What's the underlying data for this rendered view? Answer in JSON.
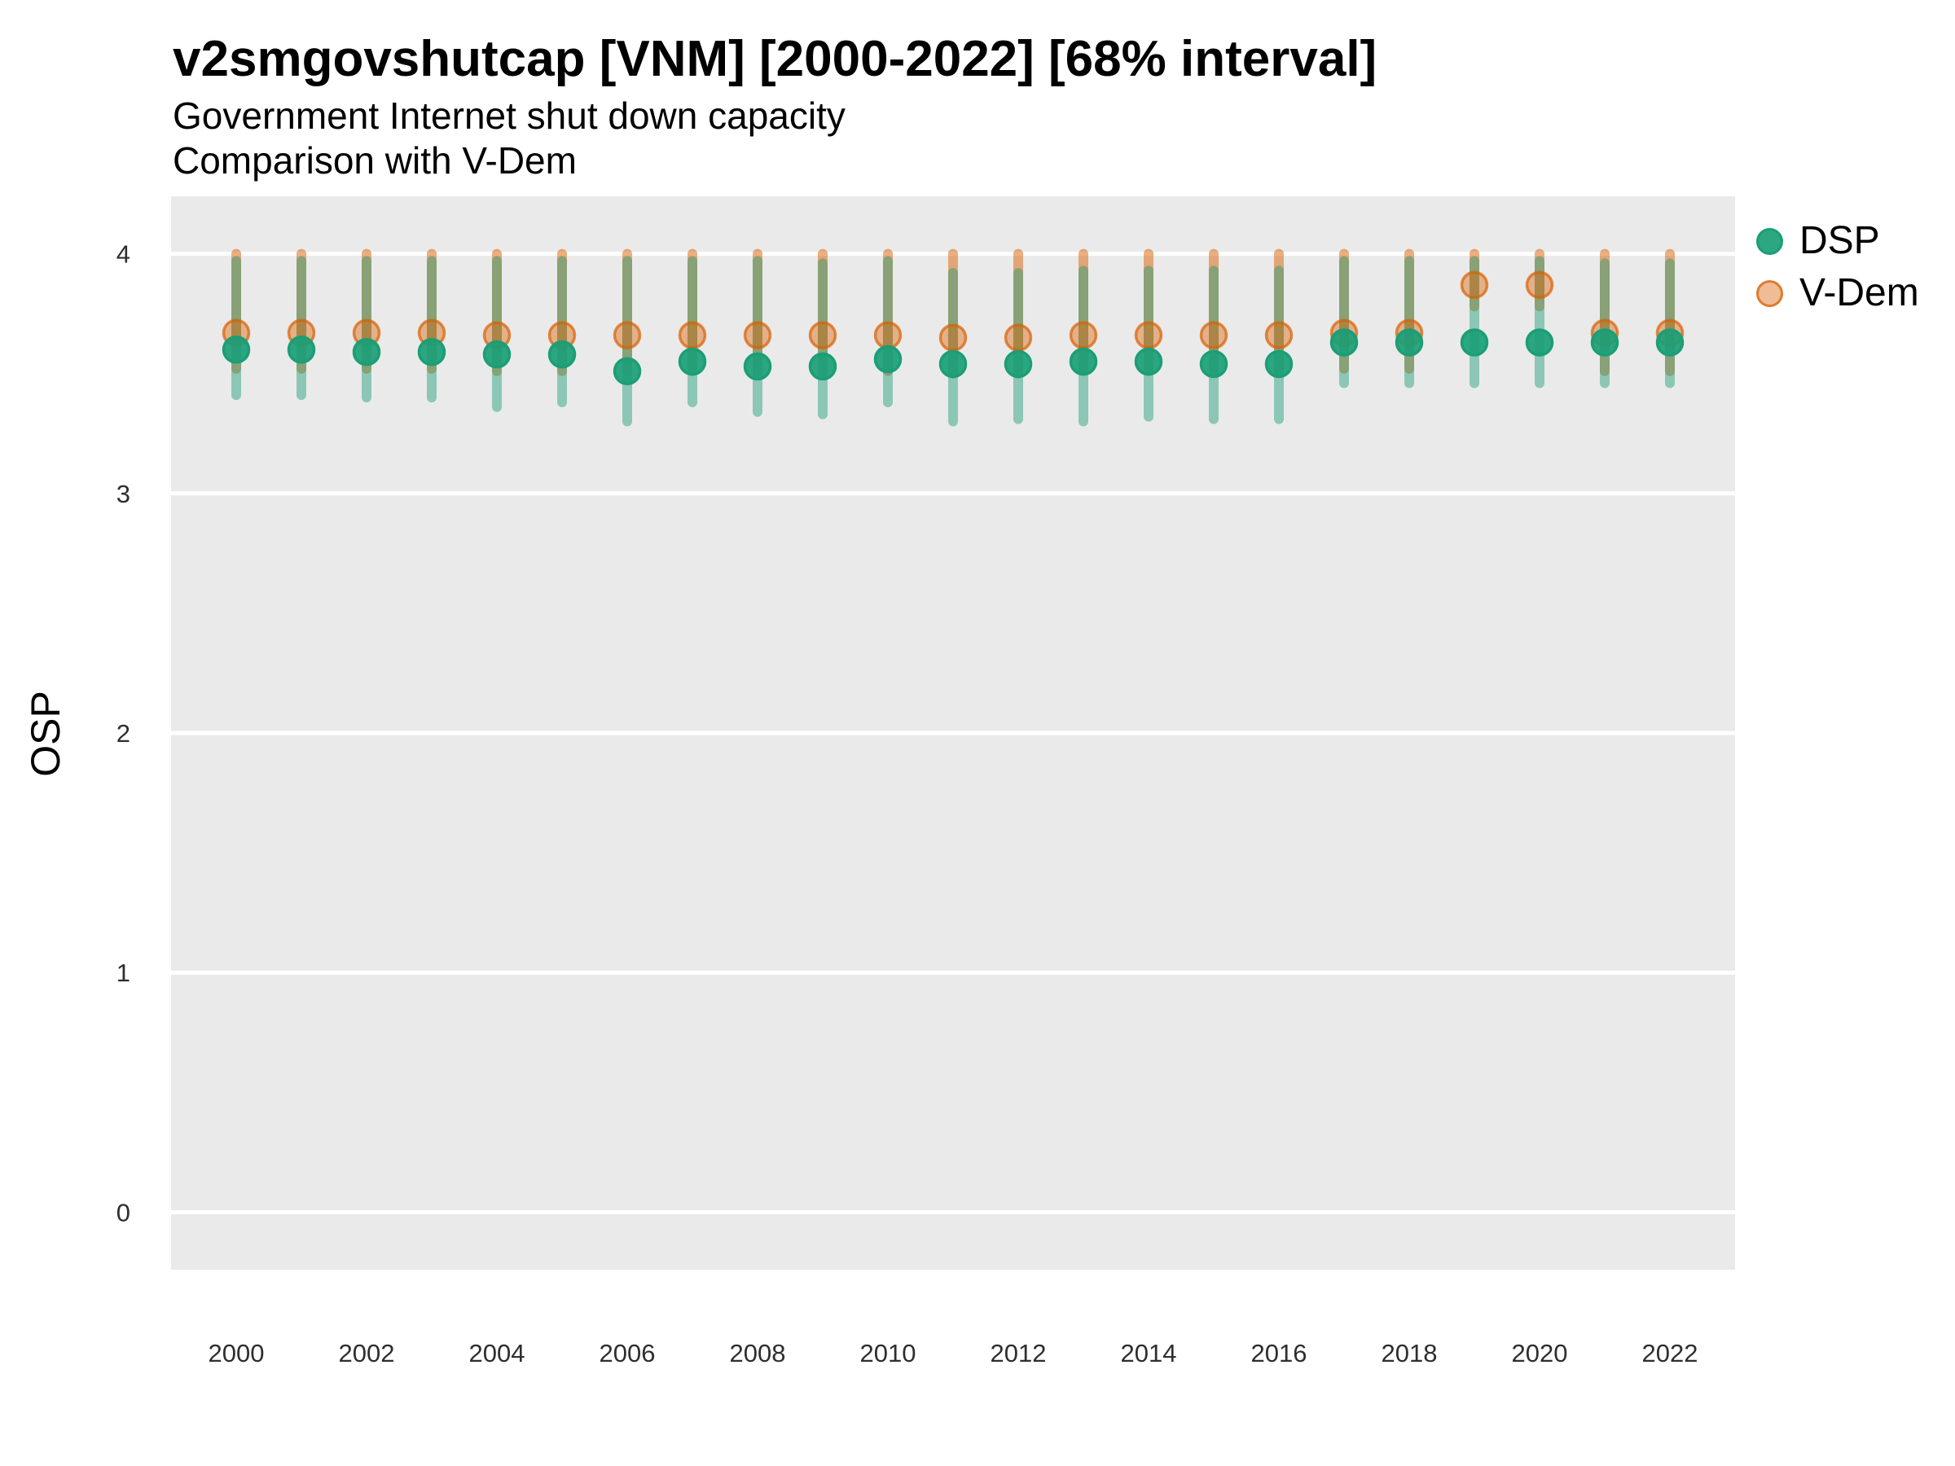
{
  "header": {
    "title": "v2smgovshutcap [VNM] [2000-2022] [68% interval]",
    "subtitle1": "Government Internet shut down capacity",
    "subtitle2": "Comparison with V-Dem"
  },
  "colors": {
    "panel_background": "#eaeaea",
    "gridline": "#ffffff",
    "axis_text": "#2e2e2e",
    "title_text": "#000000",
    "dsp": "#1b9e77",
    "vdem": "#d95f02"
  },
  "chart_data": {
    "type": "scatter",
    "title": "v2smgovshutcap [VNM] [2000-2022] [68% interval]",
    "subtitle": [
      "Government Internet shut down capacity",
      "Comparison with V-Dem"
    ],
    "xlabel": "",
    "ylabel": "OSP",
    "interval": "68%",
    "grid": "horizontal major gridlines only, white on grey panel",
    "legend_position": "right-top",
    "ylim": [
      -0.24,
      4.24
    ],
    "yticks": [
      0,
      1,
      2,
      3,
      4
    ],
    "xtick_labels": [
      2000,
      2002,
      2004,
      2006,
      2008,
      2010,
      2012,
      2014,
      2016,
      2018,
      2020,
      2022
    ],
    "x": [
      2000,
      2001,
      2002,
      2003,
      2004,
      2005,
      2006,
      2007,
      2008,
      2009,
      2010,
      2011,
      2012,
      2013,
      2014,
      2015,
      2016,
      2017,
      2018,
      2019,
      2020,
      2021,
      2022
    ],
    "series": [
      {
        "name": "DSP",
        "color": "#1b9e77",
        "estimates": [
          3.6,
          3.6,
          3.59,
          3.59,
          3.58,
          3.58,
          3.51,
          3.55,
          3.53,
          3.53,
          3.56,
          3.54,
          3.54,
          3.55,
          3.55,
          3.54,
          3.54,
          3.63,
          3.63,
          3.63,
          3.63,
          3.63,
          3.63
        ],
        "lower": [
          3.41,
          3.41,
          3.4,
          3.4,
          3.36,
          3.38,
          3.3,
          3.38,
          3.34,
          3.33,
          3.38,
          3.3,
          3.31,
          3.3,
          3.32,
          3.31,
          3.31,
          3.46,
          3.46,
          3.46,
          3.46,
          3.46,
          3.46
        ],
        "upper": [
          3.97,
          3.97,
          3.97,
          3.97,
          3.97,
          3.97,
          3.97,
          3.97,
          3.97,
          3.96,
          3.97,
          3.92,
          3.92,
          3.93,
          3.93,
          3.93,
          3.93,
          3.97,
          3.97,
          3.97,
          3.97,
          3.96,
          3.96
        ]
      },
      {
        "name": "V-Dem",
        "color": "#d95f02",
        "estimates": [
          3.67,
          3.67,
          3.67,
          3.67,
          3.66,
          3.66,
          3.66,
          3.66,
          3.66,
          3.66,
          3.66,
          3.65,
          3.65,
          3.66,
          3.66,
          3.66,
          3.66,
          3.67,
          3.67,
          3.87,
          3.87,
          3.67,
          3.67
        ],
        "lower": [
          3.52,
          3.52,
          3.52,
          3.52,
          3.51,
          3.51,
          3.51,
          3.51,
          3.51,
          3.51,
          3.51,
          3.5,
          3.5,
          3.51,
          3.51,
          3.51,
          3.51,
          3.52,
          3.52,
          3.78,
          3.78,
          3.51,
          3.51
        ],
        "upper": [
          4.0,
          4.0,
          4.0,
          4.0,
          4.0,
          4.0,
          4.0,
          4.0,
          4.0,
          4.0,
          4.0,
          4.0,
          4.0,
          4.0,
          4.0,
          4.0,
          4.0,
          4.0,
          4.0,
          4.0,
          4.0,
          4.0,
          4.0
        ]
      }
    ]
  }
}
